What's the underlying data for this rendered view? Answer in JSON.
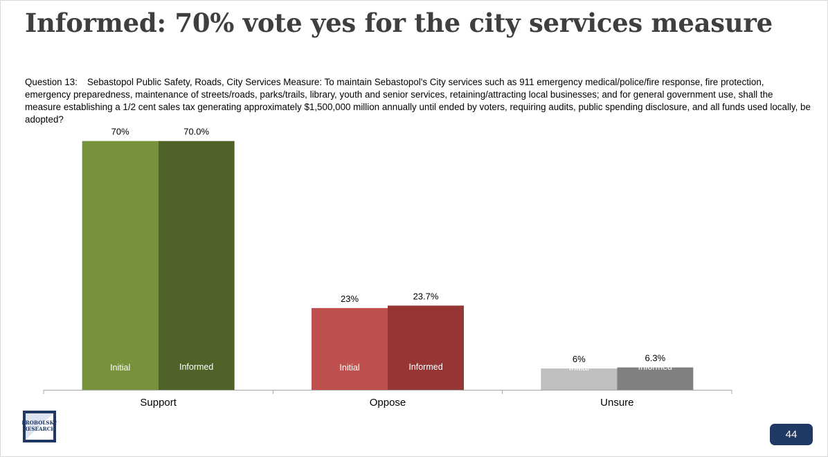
{
  "slide": {
    "title": "Informed: 70% vote yes for the city services measure",
    "question_number": "Question 13:",
    "question_text": "Sebastopol Public Safety, Roads, City Services Measure: To maintain Sebastopol's City services such as 911 emergency medical/police/fire response, fire protection, emergency preparedness, maintenance of streets/roads, parks/trails, library, youth and senior services, retaining/attracting local businesses; and for general government use, shall the measure establishing a 1/2 cent sales tax generating approximately $1,500,000 million annually until ended by voters, requiring audits, public spending disclosure, and all funds used locally, be adopted?",
    "page_number": "44",
    "logo_text": [
      "PROBOLSKY",
      "RESEARCH"
    ],
    "badge_color": "#1f3864"
  },
  "chart_data": {
    "type": "bar",
    "title": "",
    "categories": [
      "Support",
      "Oppose",
      "Unsure"
    ],
    "series": [
      {
        "name": "Initial",
        "values": [
          70,
          23,
          6
        ],
        "data_labels": [
          "70%",
          "23%",
          "6%"
        ],
        "colors": [
          "#76933c",
          "#c0504d",
          "#bfbfbf"
        ]
      },
      {
        "name": "Informed",
        "values": [
          70.0,
          23.7,
          6.3
        ],
        "data_labels": [
          "70.0%",
          "23.7%",
          "6.3%"
        ],
        "colors": [
          "#4f6228",
          "#963634",
          "#808080"
        ]
      }
    ],
    "ylim": [
      0,
      75
    ],
    "grid": false,
    "legend": "none"
  }
}
